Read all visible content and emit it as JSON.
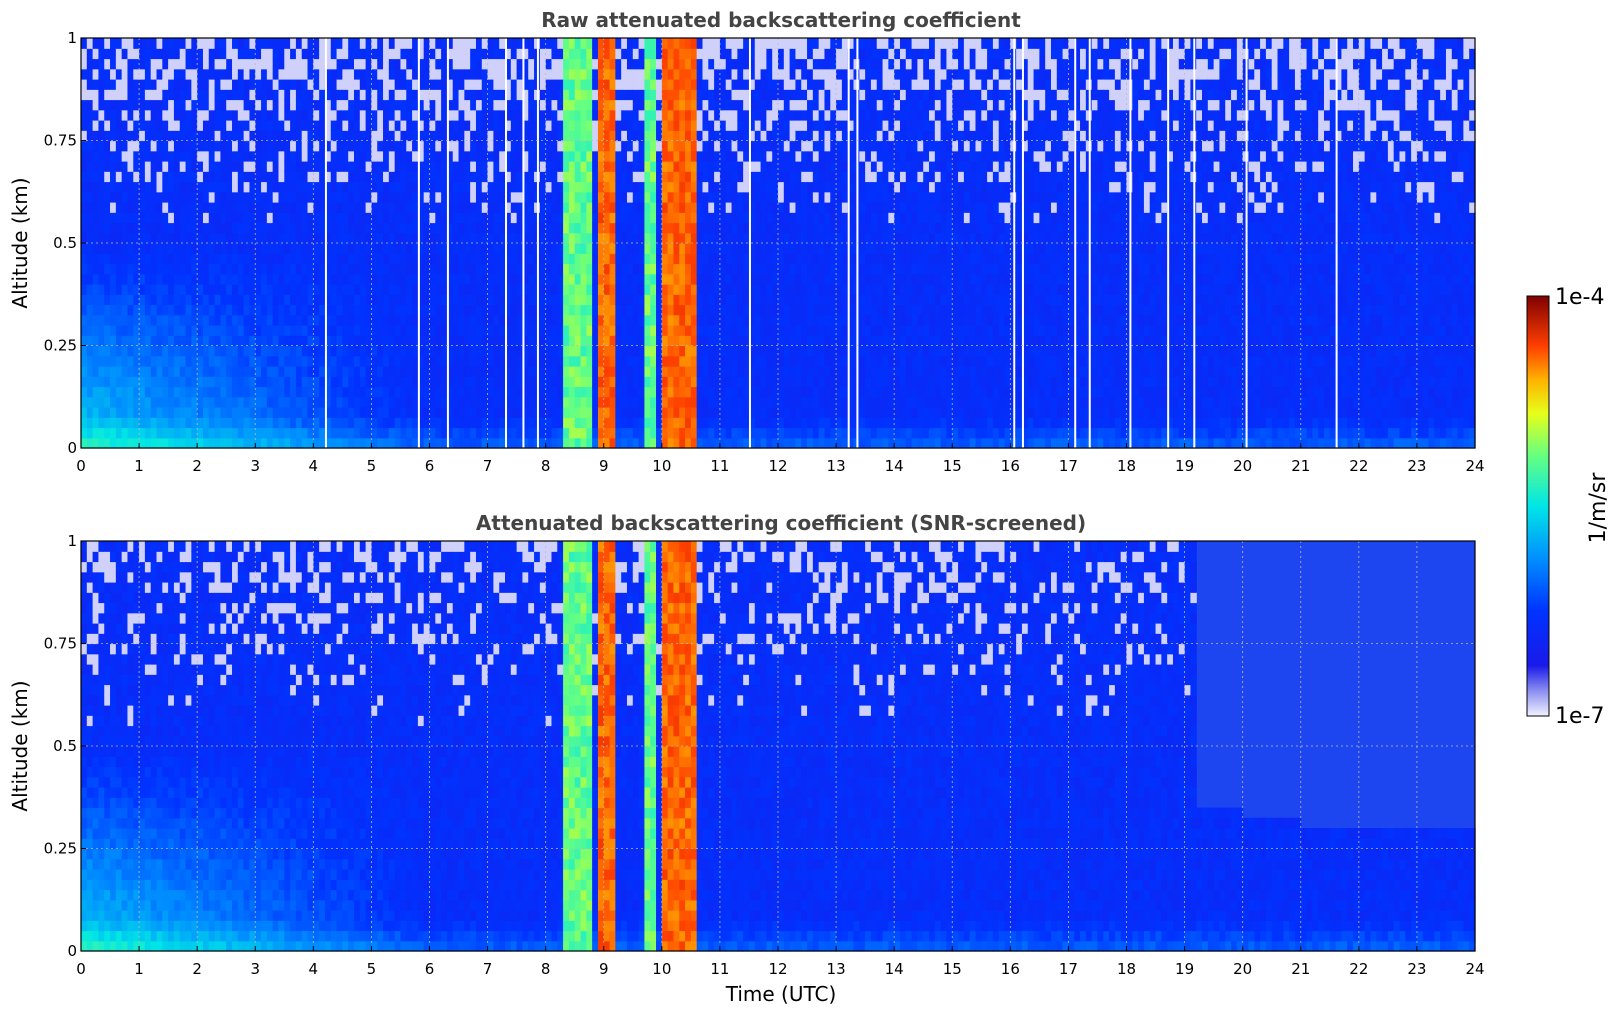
{
  "chart_data": [
    {
      "type": "heatmap",
      "title": "Raw attenuated backscattering coefficient",
      "xlabel": "",
      "ylabel": "Altitude (km)",
      "xlim": [
        0,
        24
      ],
      "ylim": [
        0,
        1
      ],
      "xticks": [
        0,
        1,
        2,
        3,
        4,
        5,
        6,
        7,
        8,
        9,
        10,
        11,
        12,
        13,
        14,
        15,
        16,
        17,
        18,
        19,
        20,
        21,
        22,
        23,
        24
      ],
      "yticks": [
        0,
        0.25,
        0.5,
        0.75,
        1
      ],
      "grid": true,
      "colorscale": "jet",
      "clim": [
        "1e-7",
        "1e-4"
      ],
      "features": {
        "aerosol_layer_top_km": 0.05,
        "high_backscatter_bands_utc": [
          [
            8.3,
            8.75
          ],
          [
            8.95,
            9.2
          ],
          [
            9.75,
            9.95
          ],
          [
            10.05,
            10.55
          ]
        ],
        "noise_columns_utc": [
          4.2,
          5.8,
          6.3,
          7.3,
          7.6,
          7.85,
          11.5,
          13.2,
          13.35,
          16.05,
          16.2,
          17.1,
          17.35,
          18.05,
          18.7,
          19.15,
          20.05,
          21.6
        ]
      }
    },
    {
      "type": "heatmap",
      "title": "Attenuated backscattering coefficient (SNR-screened)",
      "xlabel": "Time (UTC)",
      "ylabel": "Altitude (km)",
      "xlim": [
        0,
        24
      ],
      "ylim": [
        0,
        1
      ],
      "xticks": [
        0,
        1,
        2,
        3,
        4,
        5,
        6,
        7,
        8,
        9,
        10,
        11,
        12,
        13,
        14,
        15,
        16,
        17,
        18,
        19,
        20,
        21,
        22,
        23,
        24
      ],
      "yticks": [
        0,
        0.25,
        0.5,
        0.75,
        1
      ],
      "grid": true,
      "colorscale": "jet",
      "clim": [
        "1e-7",
        "1e-4"
      ],
      "features": {
        "aerosol_layer_top_km": 0.05,
        "high_backscatter_bands_utc": [
          [
            8.3,
            8.75
          ],
          [
            8.95,
            9.2
          ],
          [
            9.75,
            9.95
          ],
          [
            10.05,
            10.55
          ]
        ],
        "screened_top_km": [
          [
            19.2,
            0.35
          ],
          [
            20.0,
            0.36
          ],
          [
            20.55,
            0.33
          ],
          [
            21.0,
            0.33
          ],
          [
            21.6,
            0.31
          ],
          [
            22.5,
            0.3
          ],
          [
            24,
            0.29
          ]
        ]
      }
    }
  ],
  "colorbar": {
    "label": "1/m/sr",
    "max_label": "1e-4",
    "min_label": "1e-7"
  }
}
